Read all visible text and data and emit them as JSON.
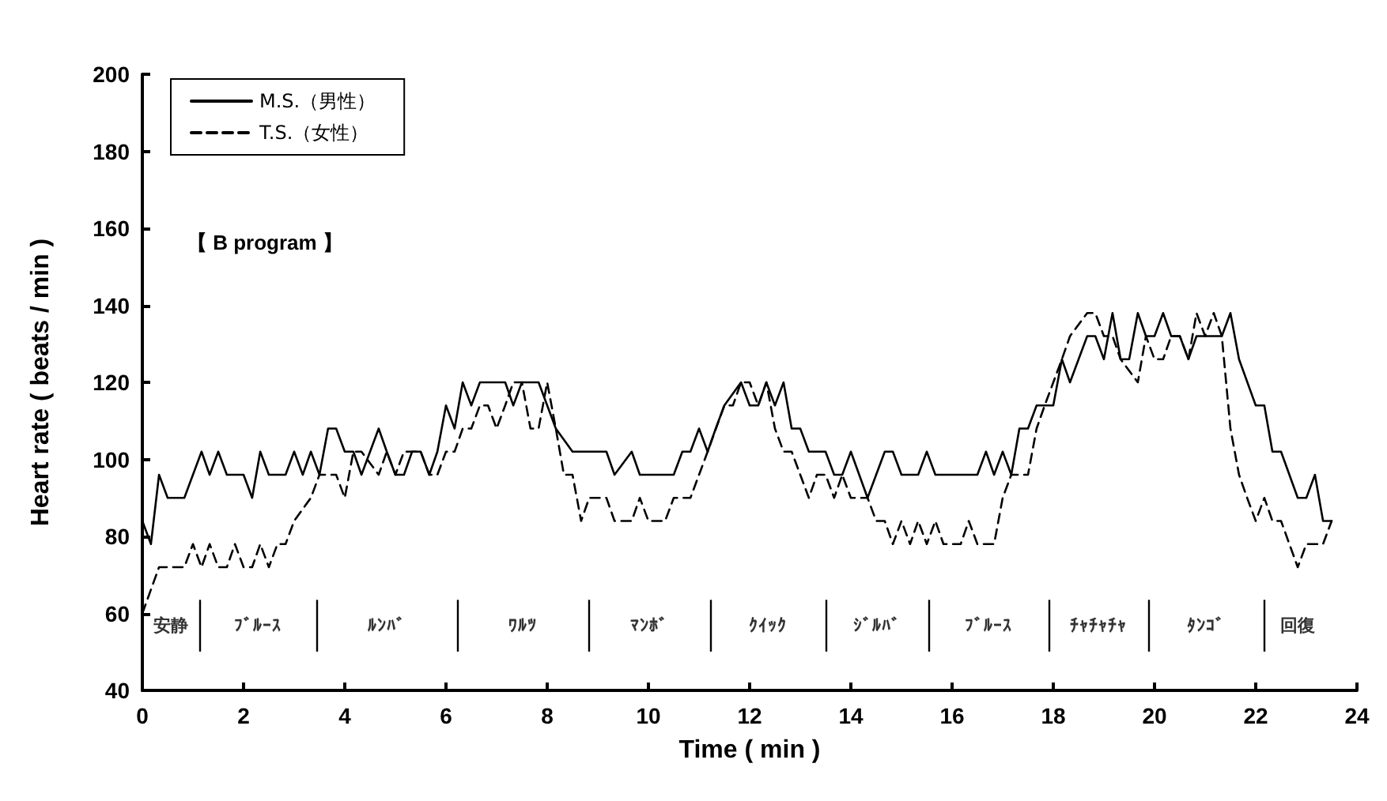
{
  "chart_data": {
    "type": "line",
    "xlabel": "Time ( min )",
    "ylabel": "Heart rate ( beats / min )",
    "xlim": [
      0,
      24
    ],
    "xticks": [
      0,
      2,
      4,
      6,
      8,
      10,
      12,
      14,
      16,
      18,
      20,
      22,
      24
    ],
    "ylim": [
      40,
      200
    ],
    "yticks": [
      40,
      60,
      80,
      100,
      120,
      140,
      160,
      180,
      200
    ],
    "grid": false,
    "legend": "top left",
    "marker": "none",
    "annotations": [
      "【 B program 】",
      "安静",
      "ﾌﾞﾙｰｽ",
      "ﾙﾝﾊﾞ",
      "ﾜﾙﾂ",
      "ﾏﾝﾎﾞ",
      "ｸｲｯｸ",
      "ｼﾞﾙﾊﾞ",
      "ﾌﾞﾙｰｽ",
      "ﾁｬﾁｬﾁｬ",
      "ﾀﾝｺﾞ",
      "回復"
    ],
    "ref_lines": [
      {
        "axis": "x",
        "value": 1.13
      },
      {
        "axis": "x",
        "value": 3.44
      },
      {
        "axis": "x",
        "value": 6.22
      },
      {
        "axis": "x",
        "value": 8.81
      },
      {
        "axis": "x",
        "value": 11.22
      },
      {
        "axis": "x",
        "value": 13.5
      },
      {
        "axis": "x",
        "value": 15.53
      },
      {
        "axis": "x",
        "value": 17.9
      },
      {
        "axis": "x",
        "value": 19.88
      },
      {
        "axis": "x",
        "value": 22.16
      }
    ],
    "series": [
      {
        "name": "M.S.（男性）",
        "color": "#000000",
        "line_style": "solid",
        "x": [
          0,
          0.17,
          0.33,
          0.5,
          0.83,
          1.17,
          1.33,
          1.5,
          1.67,
          2,
          2.17,
          2.33,
          2.5,
          2.83,
          3,
          3.17,
          3.33,
          3.5,
          3.67,
          3.83,
          4,
          4.17,
          4.33,
          4.5,
          4.67,
          4.83,
          5,
          5.17,
          5.33,
          5.5,
          5.67,
          5.83,
          6,
          6.17,
          6.33,
          6.5,
          6.67,
          7.17,
          7.33,
          7.5,
          7.83,
          8,
          8.17,
          8.5,
          9.17,
          9.33,
          9.67,
          9.83,
          10.5,
          10.67,
          10.83,
          11,
          11.17,
          11.33,
          11.5,
          11.83,
          12,
          12.17,
          12.33,
          12.5,
          12.67,
          12.83,
          13,
          13.17,
          13.5,
          13.67,
          13.83,
          14,
          14.33,
          14.67,
          14.83,
          15,
          15.33,
          15.5,
          15.67,
          16.5,
          16.67,
          16.83,
          17,
          17.17,
          17.33,
          17.5,
          17.67,
          18,
          18.17,
          18.33,
          18.67,
          18.83,
          19,
          19.17,
          19.33,
          19.5,
          19.67,
          19.83,
          20,
          20.17,
          20.33,
          20.5,
          20.67,
          20.83,
          21.33,
          21.5,
          21.67,
          22,
          22.17,
          22.33,
          22.5,
          22.83,
          23,
          23.17,
          23.33,
          23.5
        ],
        "values": [
          84,
          78,
          96,
          90,
          90,
          102,
          96,
          102,
          96,
          96,
          90,
          102,
          96,
          96,
          102,
          96,
          102,
          96,
          108,
          108,
          102,
          102,
          96,
          102,
          108,
          102,
          96,
          96,
          102,
          102,
          96,
          102,
          114,
          108,
          120,
          114,
          120,
          120,
          114,
          120,
          120,
          114,
          108,
          102,
          102,
          96,
          102,
          96,
          96,
          102,
          102,
          108,
          102,
          108,
          114,
          120,
          114,
          114,
          120,
          114,
          120,
          108,
          108,
          102,
          102,
          96,
          96,
          102,
          90,
          102,
          102,
          96,
          96,
          102,
          96,
          96,
          102,
          96,
          102,
          96,
          108,
          108,
          114,
          114,
          126,
          120,
          132,
          132,
          126,
          138,
          126,
          126,
          138,
          132,
          132,
          138,
          132,
          132,
          126,
          132,
          132,
          138,
          126,
          114,
          114,
          102,
          102,
          90,
          90,
          96,
          84,
          84
        ]
      },
      {
        "name": "T.S.（女性）",
        "color": "#000000",
        "line_style": "dashed",
        "x": [
          0,
          0.33,
          0.83,
          1,
          1.17,
          1.33,
          1.5,
          1.67,
          1.83,
          2,
          2.17,
          2.33,
          2.5,
          2.67,
          2.83,
          3,
          3.33,
          3.5,
          3.83,
          4,
          4.17,
          4.33,
          4.67,
          4.83,
          5,
          5.17,
          5.5,
          5.67,
          5.83,
          6,
          6.17,
          6.33,
          6.5,
          6.67,
          6.83,
          7,
          7.17,
          7.33,
          7.5,
          7.67,
          7.83,
          8,
          8.17,
          8.33,
          8.5,
          8.67,
          8.83,
          9.17,
          9.33,
          9.67,
          9.83,
          10,
          10.33,
          10.5,
          10.83,
          11.17,
          11.5,
          11.67,
          11.83,
          12,
          12.17,
          12.33,
          12.5,
          12.67,
          12.83,
          13.17,
          13.33,
          13.5,
          13.67,
          13.83,
          14,
          14.33,
          14.5,
          14.67,
          14.83,
          15,
          15.17,
          15.33,
          15.5,
          15.67,
          15.83,
          16.17,
          16.33,
          16.5,
          16.83,
          17,
          17.17,
          17.5,
          17.67,
          17.83,
          18,
          18.17,
          18.33,
          18.67,
          18.83,
          19,
          19.17,
          19.33,
          19.67,
          19.83,
          20,
          20.17,
          20.33,
          20.5,
          20.67,
          20.83,
          21,
          21.17,
          21.33,
          21.5,
          21.67,
          21.83,
          22,
          22.17,
          22.33,
          22.5,
          22.83,
          23,
          23.33,
          23.5
        ],
        "values": [
          60,
          72,
          72,
          78,
          72,
          78,
          72,
          72,
          78,
          72,
          72,
          78,
          72,
          78,
          78,
          84,
          90,
          96,
          96,
          90,
          102,
          102,
          96,
          102,
          96,
          102,
          102,
          96,
          96,
          102,
          102,
          108,
          108,
          114,
          114,
          108,
          114,
          120,
          120,
          108,
          108,
          120,
          108,
          96,
          96,
          84,
          90,
          90,
          84,
          84,
          90,
          84,
          84,
          90,
          90,
          102,
          114,
          114,
          120,
          120,
          114,
          120,
          108,
          102,
          102,
          90,
          96,
          96,
          90,
          96,
          90,
          90,
          84,
          84,
          78,
          84,
          78,
          84,
          78,
          84,
          78,
          78,
          84,
          78,
          78,
          90,
          96,
          96,
          108,
          114,
          120,
          126,
          132,
          138,
          138,
          132,
          132,
          126,
          120,
          132,
          126,
          126,
          132,
          132,
          126,
          138,
          132,
          138,
          132,
          108,
          96,
          90,
          84,
          90,
          84,
          84,
          72,
          78,
          78,
          84
        ]
      }
    ]
  }
}
